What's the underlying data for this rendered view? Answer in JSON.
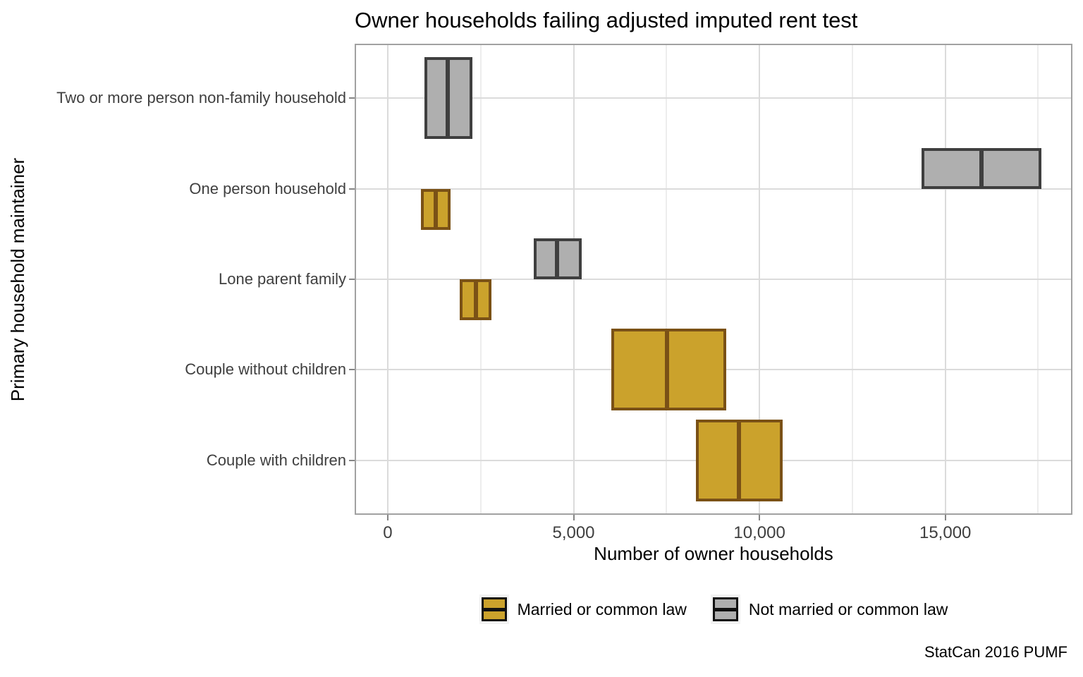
{
  "title": "Owner households failing adjusted imputed rent test",
  "caption": "StatCan 2016 PUMF",
  "axes": {
    "x_title": "Number of owner households",
    "y_title": "Primary household maintainer"
  },
  "legend": {
    "items": [
      {
        "label": "Married or common law",
        "fill": "#CBA22C"
      },
      {
        "label": "Not married or common law",
        "fill": "#AFAFAF"
      }
    ]
  },
  "chart_data": {
    "type": "crossbar",
    "orientation": "horizontal",
    "title": "Owner households failing adjusted imputed rent test",
    "xlabel": "Number of owner households",
    "ylabel": "Primary household maintainer",
    "caption": "StatCan 2016 PUMF",
    "grid": "on",
    "legend_position": "bottom",
    "x_range": [
      -890,
      18420
    ],
    "x_major_ticks": [
      0,
      5000,
      10000,
      15000
    ],
    "x_major_tick_labels": [
      "0",
      "5,000",
      "10,000",
      "15,000"
    ],
    "x_minor_ticks": [
      2500,
      7500,
      12500,
      17500
    ],
    "categories": [
      "Two or more person non-family household",
      "One person household",
      "Lone parent family",
      "Couple without children",
      "Couple with children"
    ],
    "series": [
      {
        "name": "Married or common law",
        "fill": "#CBA22C",
        "stroke": "#7A5116",
        "dodge_slot": "bottom",
        "values": [
          null,
          {
            "low": 890,
            "mid": 1290,
            "high": 1690
          },
          {
            "low": 1940,
            "mid": 2370,
            "high": 2790
          },
          {
            "low": 6020,
            "mid": 7520,
            "high": 9110
          },
          {
            "low": 8290,
            "mid": 9450,
            "high": 10630
          }
        ]
      },
      {
        "name": "Not married or common law",
        "fill": "#AFAFAF",
        "stroke": "#3F3F3F",
        "dodge_slot": "top",
        "values": [
          {
            "low": 990,
            "mid": 1610,
            "high": 2280
          },
          {
            "low": 14370,
            "mid": 15980,
            "high": 17590
          },
          {
            "low": 3930,
            "mid": 4560,
            "high": 5220
          },
          null,
          null
        ]
      }
    ]
  }
}
